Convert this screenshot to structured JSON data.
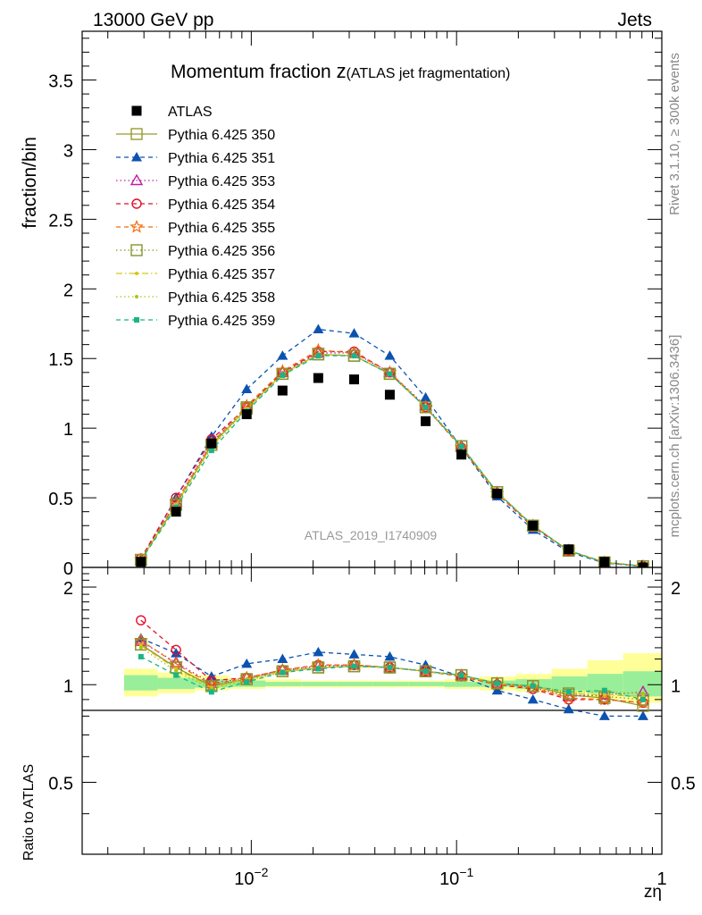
{
  "header": {
    "left": "13000 GeV pp",
    "right": "Jets"
  },
  "side_labels": {
    "rivet": "Rivet 3.1.10, ≥ 300k events",
    "mcplots": "mcplots.cern.ch [arXiv:1306.3436]"
  },
  "chart_data": {
    "type": "scatter",
    "title_main": "Momentum fraction ",
    "title_z": "z",
    "title_sub": "(ATLAS jet fragmentation)",
    "watermark": "ATLAS_2019_I1740909",
    "ylabel": "fraction/bin",
    "ratio_ylabel": "Ratio to ATLAS",
    "xlabel": "zη",
    "xscale": "log",
    "xlim": [
      0.0015,
      1.0
    ],
    "ylim": [
      0,
      3.85
    ],
    "ratio_ylim": [
      0.3,
      2.3
    ],
    "ratio_scale": "log",
    "yticks": [
      "0",
      "0.5",
      "1",
      "1.5",
      "2",
      "2.5",
      "3",
      "3.5"
    ],
    "ratio_yticks": [
      "0.5",
      "1",
      "2"
    ],
    "xticks": [
      {
        "value": 0.01,
        "base": "10",
        "exp": "−2"
      },
      {
        "value": 0.1,
        "base": "10",
        "exp": "−1"
      },
      {
        "value": 1,
        "base": "1",
        "exp": ""
      }
    ],
    "x": [
      0.0029,
      0.0043,
      0.0064,
      0.0095,
      0.0142,
      0.0212,
      0.0317,
      0.0473,
      0.0707,
      0.1056,
      0.1577,
      0.2356,
      0.3519,
      0.5258,
      0.81
    ],
    "edges": [
      0.0024,
      0.0035,
      0.0053,
      0.0078,
      0.0117,
      0.0175,
      0.0261,
      0.039,
      0.0583,
      0.0871,
      0.1301,
      0.1944,
      0.2904,
      0.4338,
      0.6481,
      1.0
    ],
    "uncertainty_bands": {
      "inner_lo": [
        0.96,
        0.97,
        0.98,
        0.985,
        0.99,
        0.99,
        0.99,
        0.99,
        0.99,
        0.985,
        0.985,
        0.97,
        0.96,
        0.94,
        0.92
      ],
      "inner_hi": [
        1.07,
        1.05,
        1.04,
        1.03,
        1.02,
        1.02,
        1.02,
        1.02,
        1.02,
        1.02,
        1.03,
        1.04,
        1.06,
        1.08,
        1.1
      ],
      "outer_lo": [
        0.92,
        0.94,
        0.96,
        0.97,
        0.98,
        0.98,
        0.98,
        0.98,
        0.98,
        0.97,
        0.96,
        0.95,
        0.93,
        0.9,
        0.88
      ],
      "outer_hi": [
        1.12,
        1.09,
        1.07,
        1.05,
        1.04,
        1.03,
        1.03,
        1.03,
        1.03,
        1.04,
        1.06,
        1.08,
        1.12,
        1.19,
        1.25
      ]
    },
    "band_colors": {
      "outer": "#ffff99",
      "inner": "#99ee99"
    },
    "series": [
      {
        "name": "ATLAS",
        "color": "#000000",
        "marker": "square-filled",
        "line": "none",
        "values": [
          0.04,
          0.4,
          0.89,
          1.1,
          1.27,
          1.36,
          1.35,
          1.24,
          1.05,
          0.81,
          0.53,
          0.3,
          0.13,
          0.04,
          0.0
        ]
      },
      {
        "name": "Pythia 6.425 350",
        "color": "#999933",
        "marker": "square-open",
        "line": "solid",
        "values": [
          0.054,
          0.45,
          0.88,
          1.14,
          1.39,
          1.53,
          1.52,
          1.39,
          1.15,
          0.87,
          0.54,
          0.3,
          0.12,
          0.036,
          0.008
        ],
        "ratio": [
          1.33,
          1.13,
          0.99,
          1.04,
          1.1,
          1.13,
          1.14,
          1.13,
          1.1,
          1.07,
          1.01,
          0.99,
          0.93,
          0.91,
          0.86
        ]
      },
      {
        "name": "Pythia 6.425 351",
        "color": "#0c53b0",
        "marker": "triangle-filled",
        "line": "dashed",
        "values": [
          0.056,
          0.5,
          0.94,
          1.28,
          1.52,
          1.71,
          1.68,
          1.52,
          1.22,
          0.86,
          0.51,
          0.27,
          0.11,
          0.032,
          0.007
        ],
        "ratio": [
          1.39,
          1.25,
          1.06,
          1.16,
          1.2,
          1.26,
          1.24,
          1.22,
          1.15,
          1.06,
          0.96,
          0.9,
          0.84,
          0.8,
          0.8
        ]
      },
      {
        "name": "Pythia 6.425 353",
        "color": "#c0209f",
        "marker": "triangle-open",
        "line": "dotted",
        "values": [
          0.055,
          0.47,
          0.9,
          1.15,
          1.4,
          1.54,
          1.54,
          1.4,
          1.16,
          0.87,
          0.54,
          0.3,
          0.12,
          0.037,
          0.009
        ],
        "ratio": [
          1.36,
          1.17,
          1.01,
          1.05,
          1.11,
          1.14,
          1.15,
          1.13,
          1.1,
          1.07,
          1.01,
          0.98,
          0.92,
          0.93,
          0.95
        ]
      },
      {
        "name": "Pythia 6.425 354",
        "color": "#e0102c",
        "marker": "circle-open",
        "line": "dashed",
        "values": [
          0.064,
          0.5,
          0.92,
          1.15,
          1.4,
          1.55,
          1.55,
          1.4,
          1.15,
          0.86,
          0.53,
          0.29,
          0.12,
          0.036,
          0.008
        ],
        "ratio": [
          1.58,
          1.28,
          1.03,
          1.05,
          1.11,
          1.15,
          1.15,
          1.13,
          1.1,
          1.06,
          1.0,
          0.97,
          0.9,
          0.9,
          0.88
        ]
      },
      {
        "name": "Pythia 6.425 355",
        "color": "#ef6d0f",
        "marker": "star-open",
        "line": "dashed",
        "values": [
          0.055,
          0.47,
          0.89,
          1.16,
          1.41,
          1.56,
          1.54,
          1.4,
          1.15,
          0.86,
          0.53,
          0.3,
          0.12,
          0.036,
          0.008
        ],
        "ratio": [
          1.37,
          1.16,
          1.0,
          1.05,
          1.11,
          1.15,
          1.15,
          1.13,
          1.1,
          1.06,
          1.0,
          0.98,
          0.91,
          0.9,
          0.88
        ]
      },
      {
        "name": "Pythia 6.425 356",
        "color": "#86942a",
        "marker": "square-open",
        "line": "dotted",
        "values": [
          0.054,
          0.45,
          0.88,
          1.15,
          1.39,
          1.53,
          1.52,
          1.39,
          1.15,
          0.87,
          0.54,
          0.3,
          0.12,
          0.036,
          0.008
        ],
        "ratio": [
          1.33,
          1.13,
          0.99,
          1.04,
          1.1,
          1.13,
          1.14,
          1.13,
          1.1,
          1.07,
          1.01,
          0.99,
          0.94,
          0.92,
          0.9
        ]
      },
      {
        "name": "Pythia 6.425 357",
        "color": "#d4c81a",
        "marker": "dot",
        "line": "dashdot",
        "values": [
          0.053,
          0.45,
          0.87,
          1.14,
          1.39,
          1.53,
          1.52,
          1.39,
          1.15,
          0.87,
          0.54,
          0.3,
          0.12,
          0.037,
          0.009
        ],
        "ratio": [
          1.32,
          1.12,
          0.98,
          1.04,
          1.1,
          1.13,
          1.14,
          1.13,
          1.1,
          1.07,
          1.01,
          0.99,
          0.94,
          0.93,
          0.92
        ]
      },
      {
        "name": "Pythia 6.425 358",
        "color": "#a8c41a",
        "marker": "dot",
        "line": "dotted",
        "values": [
          0.052,
          0.44,
          0.86,
          1.13,
          1.38,
          1.53,
          1.52,
          1.39,
          1.15,
          0.87,
          0.54,
          0.3,
          0.12,
          0.037,
          0.009
        ],
        "ratio": [
          1.3,
          1.1,
          0.97,
          1.03,
          1.09,
          1.13,
          1.14,
          1.13,
          1.1,
          1.07,
          1.01,
          0.99,
          0.95,
          0.95,
          0.94
        ]
      },
      {
        "name": "Pythia 6.425 359",
        "color": "#19b586",
        "marker": "square-small",
        "line": "dashed",
        "values": [
          0.05,
          0.43,
          0.84,
          1.12,
          1.38,
          1.52,
          1.52,
          1.39,
          1.15,
          0.87,
          0.54,
          0.3,
          0.12,
          0.037,
          0.009
        ],
        "ratio": [
          1.22,
          1.07,
          0.95,
          1.02,
          1.09,
          1.12,
          1.14,
          1.13,
          1.1,
          1.07,
          1.01,
          0.99,
          0.95,
          0.96,
          0.9
        ]
      }
    ]
  }
}
